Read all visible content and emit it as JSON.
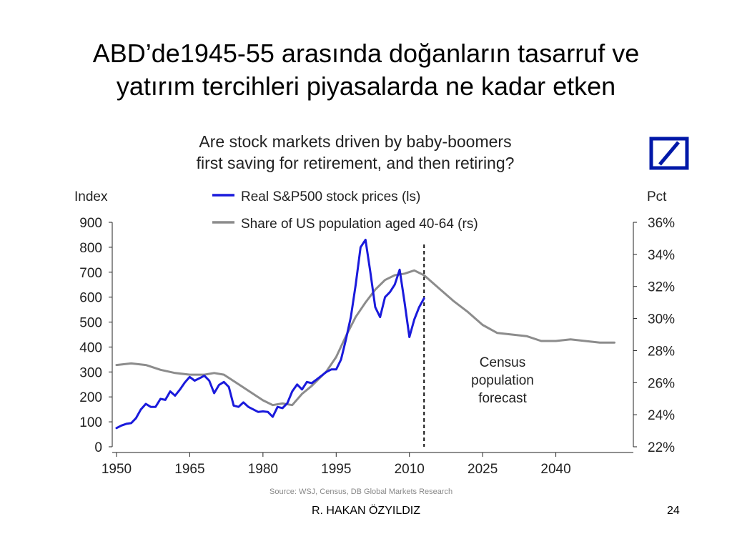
{
  "slide": {
    "title_line1": "ABD’de1945-55 arasında doğanların tasarruf ve",
    "title_line2": "yatırım tercihleri piyasalarda ne kadar etken",
    "footer_author": "R. HAKAN ÖZYILDIZ",
    "page_number": "24"
  },
  "logo": {
    "name": "deutsche-bank-logo",
    "color": "#0018A8"
  },
  "chart_data": {
    "type": "line",
    "title_line1": "Are stock markets driven by baby-boomers",
    "title_line2": "first saving for retirement, and then retiring?",
    "left_axis_label": "Index",
    "right_axis_label": "Pct",
    "x_ticks": [
      "1950",
      "1965",
      "1980",
      "1995",
      "2010",
      "2025",
      "2040"
    ],
    "x_tick_values": [
      1950,
      1965,
      1980,
      1995,
      2010,
      2025,
      2040
    ],
    "xlim": [
      1950,
      2055
    ],
    "left_ylim": [
      0,
      900
    ],
    "left_ticks": [
      "0",
      "100",
      "200",
      "300",
      "400",
      "500",
      "600",
      "700",
      "800",
      "900"
    ],
    "left_tick_values": [
      0,
      100,
      200,
      300,
      400,
      500,
      600,
      700,
      800,
      900
    ],
    "right_ylim": [
      22,
      36
    ],
    "right_ticks": [
      "22%",
      "24%",
      "26%",
      "28%",
      "30%",
      "32%",
      "34%",
      "36%"
    ],
    "right_tick_values": [
      22,
      24,
      26,
      28,
      30,
      32,
      34,
      36
    ],
    "forecast_start": 2013,
    "annotation": [
      "Census",
      "population",
      "forecast"
    ],
    "source": "Source:  WSJ, Census, DB Global Markets Research",
    "series": [
      {
        "name": "Real S&P500 stock prices (ls)",
        "axis": "left",
        "color": "#1a1adc",
        "x": [
          1950,
          1951,
          1952,
          1953,
          1954,
          1955,
          1956,
          1957,
          1958,
          1959,
          1960,
          1961,
          1962,
          1963,
          1964,
          1965,
          1966,
          1967,
          1968,
          1969,
          1970,
          1971,
          1972,
          1973,
          1974,
          1975,
          1976,
          1977,
          1978,
          1979,
          1980,
          1981,
          1982,
          1983,
          1984,
          1985,
          1986,
          1987,
          1988,
          1989,
          1990,
          1991,
          1992,
          1993,
          1994,
          1995,
          1996,
          1997,
          1998,
          1999,
          2000,
          2001,
          2002,
          2003,
          2004,
          2005,
          2006,
          2007,
          2008,
          2009,
          2010,
          2011,
          2012,
          2013
        ],
        "values": [
          75,
          85,
          92,
          95,
          115,
          150,
          172,
          160,
          160,
          192,
          188,
          222,
          205,
          230,
          258,
          280,
          265,
          275,
          285,
          265,
          215,
          248,
          260,
          240,
          165,
          160,
          178,
          160,
          150,
          140,
          142,
          140,
          120,
          160,
          155,
          175,
          222,
          250,
          230,
          260,
          255,
          270,
          285,
          300,
          310,
          310,
          350,
          430,
          520,
          650,
          800,
          830,
          700,
          560,
          520,
          600,
          620,
          650,
          710,
          580,
          440,
          510,
          560,
          595
        ]
      },
      {
        "name": "Share of US population aged 40-64 (rs)",
        "axis": "right",
        "color": "#8c8c8c",
        "x": [
          1950,
          1953,
          1956,
          1959,
          1962,
          1965,
          1968,
          1970,
          1972,
          1975,
          1978,
          1980,
          1982,
          1984,
          1986,
          1988,
          1990,
          1993,
          1995,
          1997,
          1999,
          2001,
          2003,
          2005,
          2007,
          2009,
          2011,
          2013,
          2016,
          2019,
          2022,
          2025,
          2028,
          2031,
          2034,
          2037,
          2040,
          2043,
          2046,
          2049,
          2052
        ],
        "values": [
          27.1,
          27.2,
          27.1,
          26.8,
          26.6,
          26.5,
          26.5,
          26.6,
          26.5,
          25.9,
          25.3,
          24.9,
          24.6,
          24.7,
          24.6,
          25.3,
          25.8,
          26.7,
          27.6,
          28.9,
          30.1,
          31.0,
          31.8,
          32.4,
          32.7,
          32.8,
          33.0,
          32.7,
          31.9,
          31.1,
          30.4,
          29.6,
          29.1,
          29.0,
          28.9,
          28.6,
          28.6,
          28.7,
          28.6,
          28.5,
          28.5
        ]
      }
    ]
  }
}
